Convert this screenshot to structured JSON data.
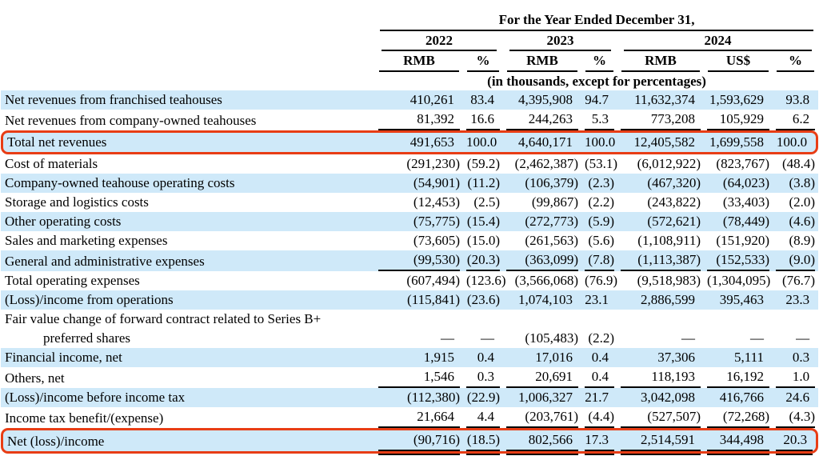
{
  "colors": {
    "row_highlight": "#cfe9f9",
    "box_outline": "#e83d15"
  },
  "header": {
    "title": "For the Year Ended December 31,",
    "subtitle": "(in thousands, except for percentages)",
    "year_groups": [
      {
        "label": "2022",
        "cols": [
          "RMB",
          "%"
        ]
      },
      {
        "label": "2023",
        "cols": [
          "RMB",
          "%"
        ]
      },
      {
        "label": "2024",
        "cols": [
          "RMB",
          "US$",
          "%"
        ]
      }
    ]
  },
  "table": {
    "rows": [
      {
        "label": "Net revenues from franchised teahouses",
        "values": [
          "410,261",
          "83.4",
          "4,395,908",
          "94.7",
          "11,632,374",
          "1,593,629",
          "93.8"
        ],
        "highlight": true,
        "bold": false,
        "underline_after": false,
        "red_box": false,
        "double_underline": false
      },
      {
        "label": "Net revenues from company-owned teahouses",
        "values": [
          "81,392",
          "16.6",
          "244,263",
          "5.3",
          "773,208",
          "105,929",
          "6.2"
        ],
        "highlight": false,
        "bold": false,
        "underline_after": true,
        "red_box": false,
        "double_underline": false
      },
      {
        "label": "Total net revenues",
        "values": [
          "491,653",
          "100.0",
          "4,640,171",
          "100.0",
          "12,405,582",
          "1,699,558",
          "100.0"
        ],
        "highlight": true,
        "bold": true,
        "underline_after": false,
        "red_box": true,
        "double_underline": false
      },
      {
        "label": "Cost of materials",
        "values": [
          "(291,230)",
          "(59.2)",
          "(2,462,387)",
          "(53.1)",
          "(6,012,922)",
          "(823,767)",
          "(48.4)"
        ],
        "highlight": false,
        "bold": false,
        "underline_after": false,
        "red_box": false,
        "double_underline": false
      },
      {
        "label": "Company-owned teahouse operating costs",
        "values": [
          "(54,901)",
          "(11.2)",
          "(106,379)",
          "(2.3)",
          "(467,320)",
          "(64,023)",
          "(3.8)"
        ],
        "highlight": true,
        "bold": false,
        "underline_after": false,
        "red_box": false,
        "double_underline": false
      },
      {
        "label": "Storage and logistics costs",
        "values": [
          "(12,453)",
          "(2.5)",
          "(99,867)",
          "(2.2)",
          "(243,822)",
          "(33,403)",
          "(2.0)"
        ],
        "highlight": false,
        "bold": false,
        "underline_after": false,
        "red_box": false,
        "double_underline": false
      },
      {
        "label": "Other operating costs",
        "values": [
          "(75,775)",
          "(15.4)",
          "(272,773)",
          "(5.9)",
          "(572,621)",
          "(78,449)",
          "(4.6)"
        ],
        "highlight": true,
        "bold": false,
        "underline_after": false,
        "red_box": false,
        "double_underline": false
      },
      {
        "label": "Sales and marketing expenses",
        "values": [
          "(73,605)",
          "(15.0)",
          "(261,563)",
          "(5.6)",
          "(1,108,911)",
          "(151,920)",
          "(8.9)"
        ],
        "highlight": false,
        "bold": false,
        "underline_after": false,
        "red_box": false,
        "double_underline": false
      },
      {
        "label": "General and administrative expenses",
        "values": [
          "(99,530)",
          "(20.3)",
          "(363,099)",
          "(7.8)",
          "(1,113,387)",
          "(152,533)",
          "(9.0)"
        ],
        "highlight": true,
        "bold": false,
        "underline_after": true,
        "red_box": false,
        "double_underline": false
      },
      {
        "label": "Total operating expenses",
        "values": [
          "(607,494)",
          "(123.6)",
          "(3,566,068)",
          "(76.9)",
          "(9,518,983)",
          "(1,304,095)",
          "(76.7)"
        ],
        "highlight": false,
        "bold": true,
        "underline_after": false,
        "red_box": false,
        "double_underline": false
      },
      {
        "label": "(Loss)/income from operations",
        "values": [
          "(115,841)",
          "(23.6)",
          "1,074,103",
          "23.1",
          "2,886,599",
          "395,463",
          "23.3"
        ],
        "highlight": true,
        "bold": true,
        "underline_after": false,
        "red_box": false,
        "double_underline": false
      },
      {
        "label": "Fair value change of forward contract related to Series B+",
        "label_line2": "preferred shares",
        "values": [
          "—",
          "—",
          "(105,483)",
          "(2.2)",
          "—",
          "—",
          "—"
        ],
        "highlight": false,
        "bold": false,
        "underline_after": false,
        "red_box": false,
        "double_underline": false
      },
      {
        "label": "Financial income, net",
        "values": [
          "1,915",
          "0.4",
          "17,016",
          "0.4",
          "37,306",
          "5,111",
          "0.3"
        ],
        "highlight": true,
        "bold": false,
        "underline_after": false,
        "red_box": false,
        "double_underline": false
      },
      {
        "label": "Others, net",
        "values": [
          "1,546",
          "0.3",
          "20,691",
          "0.4",
          "118,193",
          "16,192",
          "1.0"
        ],
        "highlight": false,
        "bold": false,
        "underline_after": true,
        "red_box": false,
        "double_underline": false
      },
      {
        "label": "(Loss)/income before income tax",
        "values": [
          "(112,380)",
          "(22.9)",
          "1,006,327",
          "21.7",
          "3,042,098",
          "416,766",
          "24.6"
        ],
        "highlight": true,
        "bold": true,
        "underline_after": false,
        "red_box": false,
        "double_underline": false
      },
      {
        "label": "Income tax benefit/(expense)",
        "values": [
          "21,664",
          "4.4",
          "(203,761)",
          "(4.4)",
          "(527,507)",
          "(72,268)",
          "(4.3)"
        ],
        "highlight": false,
        "bold": false,
        "underline_after": true,
        "red_box": false,
        "double_underline": false
      },
      {
        "label": "Net (loss)/income",
        "values": [
          "(90,716)",
          "(18.5)",
          "802,566",
          "17.3",
          "2,514,591",
          "344,498",
          "20.3"
        ],
        "highlight": true,
        "bold": true,
        "underline_after": false,
        "red_box": true,
        "double_underline": true
      }
    ]
  }
}
